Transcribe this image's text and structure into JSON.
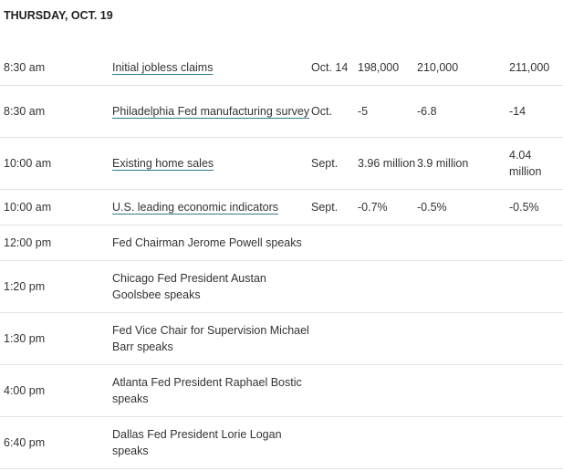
{
  "day_header": "THURSDAY, OCT. 19",
  "rows": [
    {
      "time": "8:30 am",
      "event": "Initial jobless claims",
      "link": true,
      "period": "Oct. 14",
      "actual": "198,000",
      "forecast": "210,000",
      "previous": "211,000"
    },
    {
      "time": "8:30 am",
      "event": "Philadelphia Fed manufacturing survey",
      "link": true,
      "period": "Oct.",
      "actual": "-5",
      "forecast": "-6.8",
      "previous": "-14"
    },
    {
      "time": "10:00 am",
      "event": "Existing home sales",
      "link": true,
      "period": "Sept.",
      "actual": "3.96 million",
      "forecast": "3.9 million",
      "previous": "4.04 million"
    },
    {
      "time": "10:00 am",
      "event": "U.S. leading economic indicators",
      "link": true,
      "period": "Sept.",
      "actual": "-0.7%",
      "forecast": "-0.5%",
      "previous": "-0.5%"
    },
    {
      "time": "12:00 pm",
      "event": "Fed Chairman Jerome Powell speaks",
      "link": false,
      "period": "",
      "actual": "",
      "forecast": "",
      "previous": ""
    },
    {
      "time": "1:20 pm",
      "event": "Chicago Fed President Austan Goolsbee speaks",
      "link": false,
      "period": "",
      "actual": "",
      "forecast": "",
      "previous": ""
    },
    {
      "time": "1:30 pm",
      "event": "Fed Vice Chair for Supervision Michael Barr speaks",
      "link": false,
      "period": "",
      "actual": "",
      "forecast": "",
      "previous": ""
    },
    {
      "time": "4:00 pm",
      "event": "Atlanta Fed President Raphael Bostic speaks",
      "link": false,
      "period": "",
      "actual": "",
      "forecast": "",
      "previous": ""
    },
    {
      "time": "6:40 pm",
      "event": "Dallas Fed President Lorie Logan speaks",
      "link": false,
      "period": "",
      "actual": "",
      "forecast": "",
      "previous": ""
    }
  ]
}
